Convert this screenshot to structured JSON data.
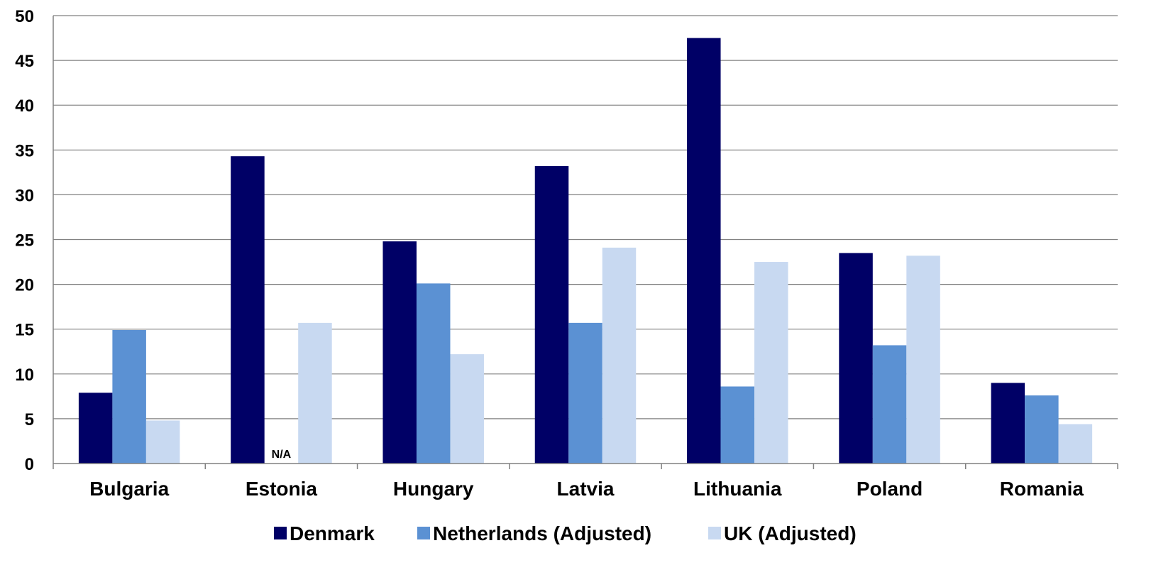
{
  "chart_data": {
    "type": "bar",
    "title": "",
    "xlabel": "",
    "ylabel": "",
    "ylim": [
      0,
      50
    ],
    "yticks": [
      0,
      5,
      10,
      15,
      20,
      25,
      30,
      35,
      40,
      45,
      50
    ],
    "grid": true,
    "legend_position": "bottom",
    "categories": [
      "Bulgaria",
      "Estonia",
      "Hungary",
      "Latvia",
      "Lithuania",
      "Poland",
      "Romania"
    ],
    "series": [
      {
        "name": "Denmark",
        "color": "#000066",
        "values": [
          7.9,
          34.3,
          24.8,
          33.2,
          47.5,
          23.5,
          9.0
        ]
      },
      {
        "name": "Netherlands (Adjusted)",
        "color": "#5B91D3",
        "values": [
          14.9,
          null,
          20.1,
          15.7,
          8.6,
          13.2,
          7.6
        ]
      },
      {
        "name": "UK (Adjusted)",
        "color": "#C8D9F1",
        "values": [
          4.8,
          15.7,
          12.2,
          24.1,
          22.5,
          23.2,
          4.4
        ]
      }
    ],
    "annotations": [
      {
        "category": "Estonia",
        "series": "Netherlands (Adjusted)",
        "text": "N/A"
      }
    ]
  }
}
